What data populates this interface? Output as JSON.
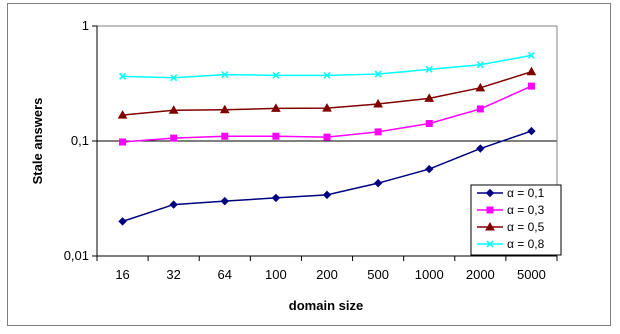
{
  "chart_data": {
    "type": "line",
    "title": "",
    "xlabel": "domain size",
    "ylabel": "Stale answers",
    "y_scale": "log",
    "ylim": [
      0.01,
      1
    ],
    "y_ticks": [
      {
        "value": 0.01,
        "label": "0,01"
      },
      {
        "value": 0.1,
        "label": "0,1"
      },
      {
        "value": 1,
        "label": "1"
      }
    ],
    "categories": [
      "16",
      "32",
      "64",
      "100",
      "200",
      "500",
      "1000",
      "2000",
      "5000"
    ],
    "grid": "major y line at 0,1",
    "legend_position": "bottom-right",
    "series": [
      {
        "name": "α = 0,1",
        "color": "#000080",
        "marker": "diamond",
        "values": [
          0.02,
          0.028,
          0.03,
          0.032,
          0.034,
          0.043,
          0.057,
          0.086,
          0.122
        ]
      },
      {
        "name": "α = 0,3",
        "color": "#FF00FF",
        "marker": "square",
        "values": [
          0.098,
          0.106,
          0.11,
          0.11,
          0.108,
          0.12,
          0.142,
          0.19,
          0.3
        ]
      },
      {
        "name": "α = 0,5",
        "color": "#800000",
        "marker": "triangle",
        "values": [
          0.168,
          0.185,
          0.187,
          0.192,
          0.193,
          0.21,
          0.235,
          0.29,
          0.4
        ]
      },
      {
        "name": "α = 0,8",
        "color": "#00FFFF",
        "marker": "x",
        "values": [
          0.365,
          0.355,
          0.378,
          0.372,
          0.372,
          0.382,
          0.42,
          0.46,
          0.555
        ]
      }
    ]
  }
}
